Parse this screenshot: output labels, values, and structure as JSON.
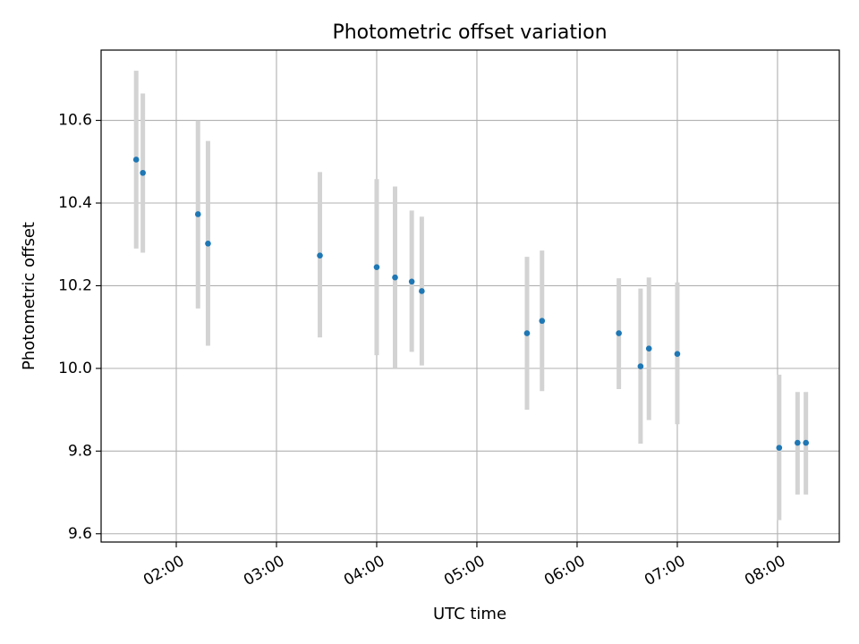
{
  "chart_data": {
    "type": "scatter",
    "title": "Photometric offset variation",
    "xlabel": "UTC time",
    "ylabel": "Photometric offset",
    "xlim": [
      "01:15",
      "08:37"
    ],
    "ylim": [
      9.58,
      10.77
    ],
    "grid": true,
    "x_ticks": [
      "02:00",
      "03:00",
      "04:00",
      "05:00",
      "06:00",
      "07:00",
      "08:00"
    ],
    "y_ticks": [
      9.6,
      9.8,
      10.0,
      10.2,
      10.4,
      10.6
    ],
    "y_tick_labels": [
      "9.6",
      "9.8",
      "10.0",
      "10.2",
      "10.4",
      "10.6"
    ],
    "colors": {
      "marker": "#1f77b4",
      "errorbar": "#d3d3d3",
      "grid": "#b0b0b0"
    },
    "points": [
      {
        "x": "01:36",
        "y": 10.505,
        "err_low": 10.29,
        "err_high": 10.72
      },
      {
        "x": "01:40",
        "y": 10.473,
        "err_low": 10.28,
        "err_high": 10.665
      },
      {
        "x": "02:13",
        "y": 10.373,
        "err_low": 10.145,
        "err_high": 10.6
      },
      {
        "x": "02:19",
        "y": 10.302,
        "err_low": 10.055,
        "err_high": 10.55
      },
      {
        "x": "03:26",
        "y": 10.273,
        "err_low": 10.075,
        "err_high": 10.475
      },
      {
        "x": "04:00",
        "y": 10.245,
        "err_low": 10.032,
        "err_high": 10.458
      },
      {
        "x": "04:11",
        "y": 10.22,
        "err_low": 10.0,
        "err_high": 10.44
      },
      {
        "x": "04:21",
        "y": 10.21,
        "err_low": 10.04,
        "err_high": 10.382
      },
      {
        "x": "04:27",
        "y": 10.187,
        "err_low": 10.007,
        "err_high": 10.367
      },
      {
        "x": "05:30",
        "y": 10.085,
        "err_low": 9.9,
        "err_high": 10.27
      },
      {
        "x": "05:39",
        "y": 10.115,
        "err_low": 9.945,
        "err_high": 10.285
      },
      {
        "x": "06:25",
        "y": 10.085,
        "err_low": 9.95,
        "err_high": 10.218
      },
      {
        "x": "06:38",
        "y": 10.005,
        "err_low": 9.818,
        "err_high": 10.193
      },
      {
        "x": "06:43",
        "y": 10.048,
        "err_low": 9.875,
        "err_high": 10.22
      },
      {
        "x": "07:00",
        "y": 10.035,
        "err_low": 9.865,
        "err_high": 10.208
      },
      {
        "x": "08:01",
        "y": 9.808,
        "err_low": 9.633,
        "err_high": 9.985
      },
      {
        "x": "08:12",
        "y": 9.82,
        "err_low": 9.695,
        "err_high": 9.943
      },
      {
        "x": "08:17",
        "y": 9.82,
        "err_low": 9.695,
        "err_high": 9.943
      }
    ]
  }
}
